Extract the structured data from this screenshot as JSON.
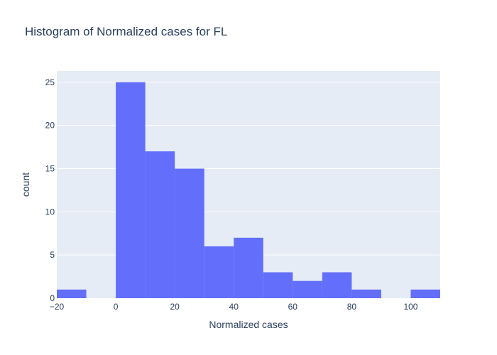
{
  "chart_data": {
    "type": "bar",
    "subtype": "histogram",
    "title": "Histogram of Normalized cases for FL",
    "xlabel": "Normalized cases",
    "ylabel": "count",
    "bins": [
      {
        "start": -20,
        "end": -10,
        "count": 1
      },
      {
        "start": -10,
        "end": 0,
        "count": 0
      },
      {
        "start": 0,
        "end": 10,
        "count": 25
      },
      {
        "start": 10,
        "end": 20,
        "count": 17
      },
      {
        "start": 20,
        "end": 30,
        "count": 15
      },
      {
        "start": 30,
        "end": 40,
        "count": 6
      },
      {
        "start": 40,
        "end": 50,
        "count": 7
      },
      {
        "start": 50,
        "end": 60,
        "count": 3
      },
      {
        "start": 60,
        "end": 70,
        "count": 2
      },
      {
        "start": 70,
        "end": 80,
        "count": 3
      },
      {
        "start": 80,
        "end": 90,
        "count": 1
      },
      {
        "start": 90,
        "end": 100,
        "count": 0
      },
      {
        "start": 100,
        "end": 110,
        "count": 1
      }
    ],
    "xlim": [
      -20,
      110
    ],
    "ylim": [
      0,
      26.3
    ],
    "xticks": [
      -20,
      0,
      20,
      40,
      60,
      80,
      100
    ],
    "xtick_labels": [
      "−20",
      "0",
      "20",
      "40",
      "60",
      "80",
      "100"
    ],
    "yticks": [
      0,
      5,
      10,
      15,
      20,
      25
    ],
    "ytick_labels": [
      "0",
      "5",
      "10",
      "15",
      "20",
      "25"
    ],
    "grid": true,
    "legend": false,
    "colors": {
      "bar": "#636efa",
      "plot_bg": "#e5ecf6",
      "grid": "#ffffff",
      "text": "#2a3f5f"
    }
  }
}
